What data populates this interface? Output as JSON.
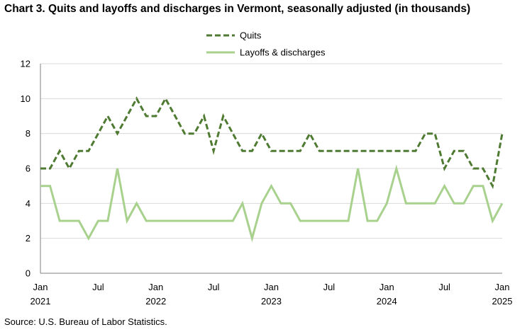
{
  "title": "Chart 3. Quits and layoffs and discharges in Vermont, seasonally adjusted (in thousands)",
  "source": "Source: U.S. Bureau of Labor Statistics.",
  "colors": {
    "quits": "#4f7a32",
    "layoffs": "#a9d18e",
    "axis": "#808080",
    "grid": "#d9d9d9"
  },
  "chart_data": {
    "type": "line",
    "title": "Chart 3. Quits and layoffs and discharges in Vermont, seasonally adjusted (in thousands)",
    "xlabel": "",
    "ylabel": "",
    "ylim": [
      0,
      12
    ],
    "yticks": [
      "0",
      "2",
      "4",
      "6",
      "8",
      "10",
      "12"
    ],
    "grid": "horizontal",
    "legend_position": "top-center",
    "x_tick_labels": [
      {
        "month": "Jan",
        "year": "2021"
      },
      {
        "month": "Jul",
        "year": ""
      },
      {
        "month": "Jan",
        "year": "2022"
      },
      {
        "month": "Jul",
        "year": ""
      },
      {
        "month": "Jan",
        "year": "2023"
      },
      {
        "month": "Jul",
        "year": ""
      },
      {
        "month": "Jan",
        "year": "2024"
      },
      {
        "month": "Jul",
        "year": ""
      },
      {
        "month": "Jan",
        "year": "2025"
      }
    ],
    "x": [
      "2021-01",
      "2021-02",
      "2021-03",
      "2021-04",
      "2021-05",
      "2021-06",
      "2021-07",
      "2021-08",
      "2021-09",
      "2021-10",
      "2021-11",
      "2021-12",
      "2022-01",
      "2022-02",
      "2022-03",
      "2022-04",
      "2022-05",
      "2022-06",
      "2022-07",
      "2022-08",
      "2022-09",
      "2022-10",
      "2022-11",
      "2022-12",
      "2023-01",
      "2023-02",
      "2023-03",
      "2023-04",
      "2023-05",
      "2023-06",
      "2023-07",
      "2023-08",
      "2023-09",
      "2023-10",
      "2023-11",
      "2023-12",
      "2024-01",
      "2024-02",
      "2024-03",
      "2024-04",
      "2024-05",
      "2024-06",
      "2024-07",
      "2024-08",
      "2024-09",
      "2024-10",
      "2024-11",
      "2024-12",
      "2025-01"
    ],
    "series": [
      {
        "name": "Quits",
        "style": "dashed",
        "values": [
          6,
          6,
          7,
          6,
          7,
          7,
          8,
          9,
          8,
          9,
          10,
          9,
          9,
          10,
          9,
          8,
          8,
          9,
          7,
          9,
          8,
          7,
          7,
          8,
          7,
          7,
          7,
          7,
          8,
          7,
          7,
          7,
          7,
          7,
          7,
          7,
          7,
          7,
          7,
          7,
          8,
          8,
          6,
          7,
          7,
          6,
          6,
          5,
          8
        ]
      },
      {
        "name": "Layoffs & discharges",
        "style": "solid",
        "values": [
          5,
          5,
          3,
          3,
          3,
          2,
          3,
          3,
          6,
          3,
          4,
          3,
          3,
          3,
          3,
          3,
          3,
          3,
          3,
          3,
          3,
          4,
          2,
          4,
          5,
          4,
          4,
          3,
          3,
          3,
          3,
          3,
          3,
          6,
          3,
          3,
          4,
          6,
          4,
          4,
          4,
          4,
          5,
          4,
          4,
          5,
          5,
          3,
          4
        ]
      }
    ]
  }
}
